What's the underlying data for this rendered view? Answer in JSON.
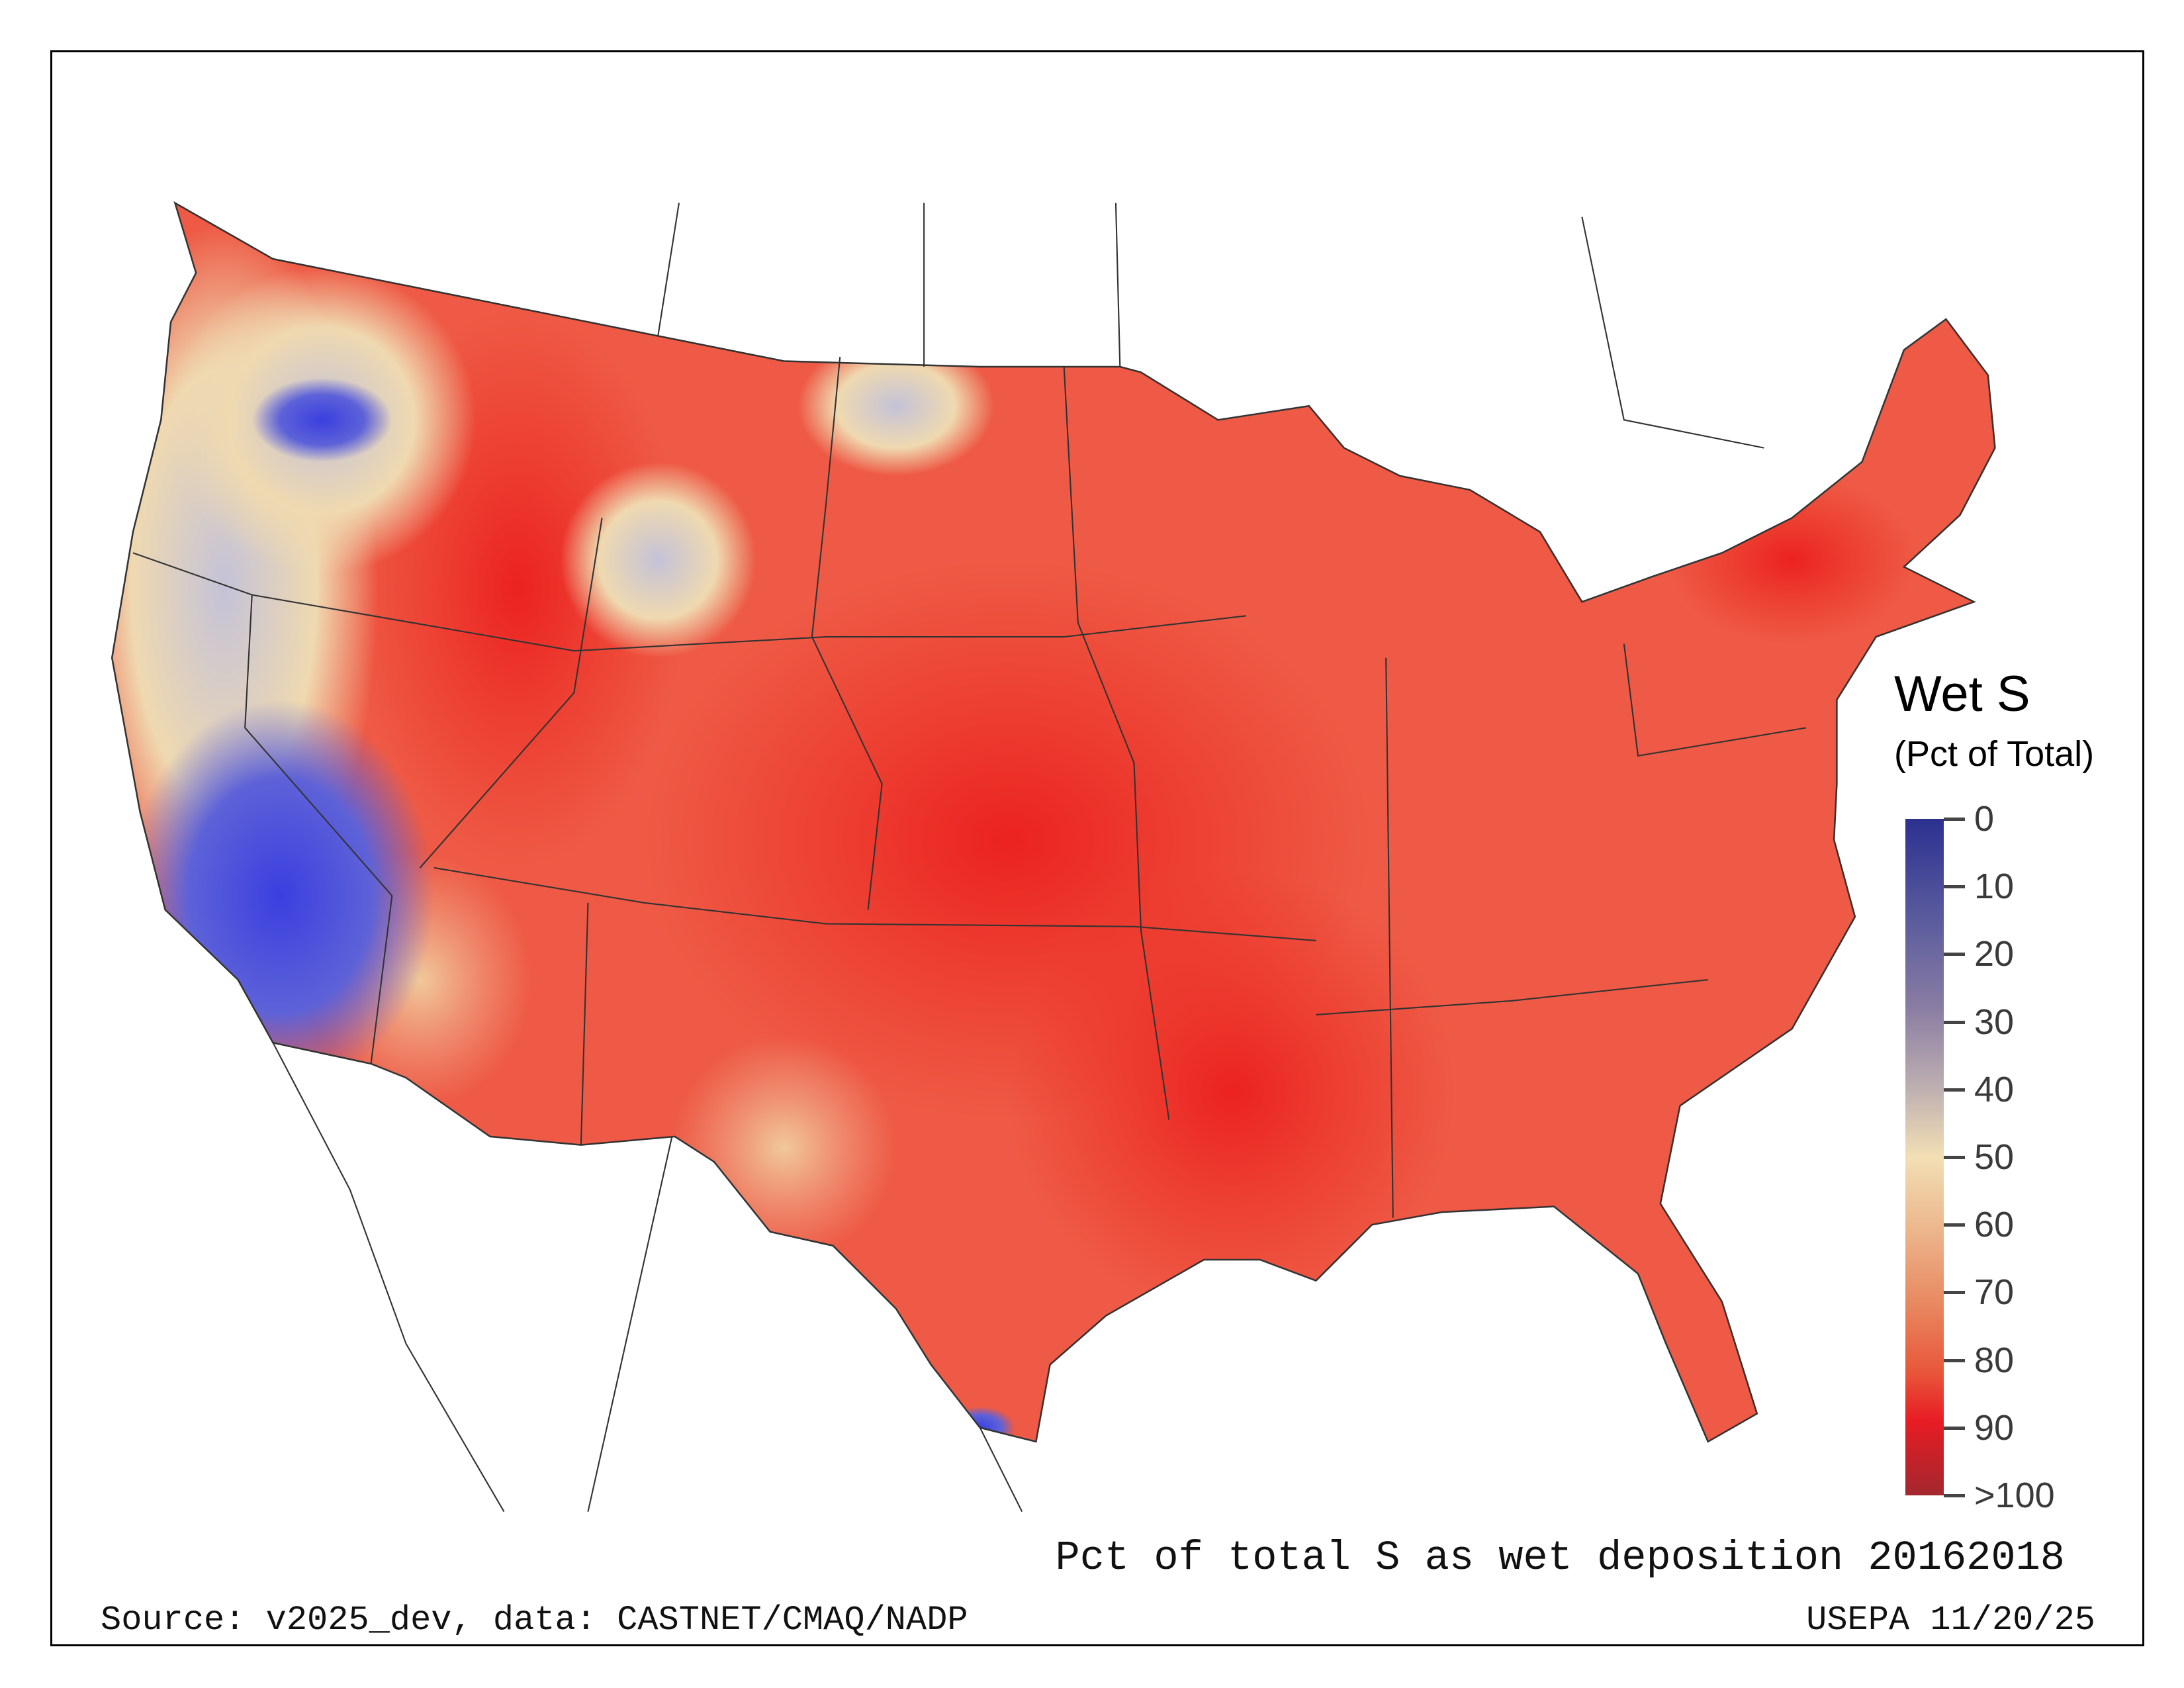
{
  "legend": {
    "title": "Wet S",
    "subtitle": "(Pct of Total)",
    "ticks": [
      "0",
      "10",
      "20",
      "30",
      "40",
      "50",
      "60",
      "70",
      "80",
      "90",
      ">100"
    ],
    "colors": {
      "low": "#2c3190",
      "mid": "#f2dfb4",
      "high": "#e81c24",
      "max": "#a3282e"
    }
  },
  "map": {
    "title": "Pct of total S as wet deposition 20162018",
    "source": "Source: v2025_dev, data: CASTNET/CMAQ/NADP",
    "agency_date": "USEPA 11/20/25"
  }
}
